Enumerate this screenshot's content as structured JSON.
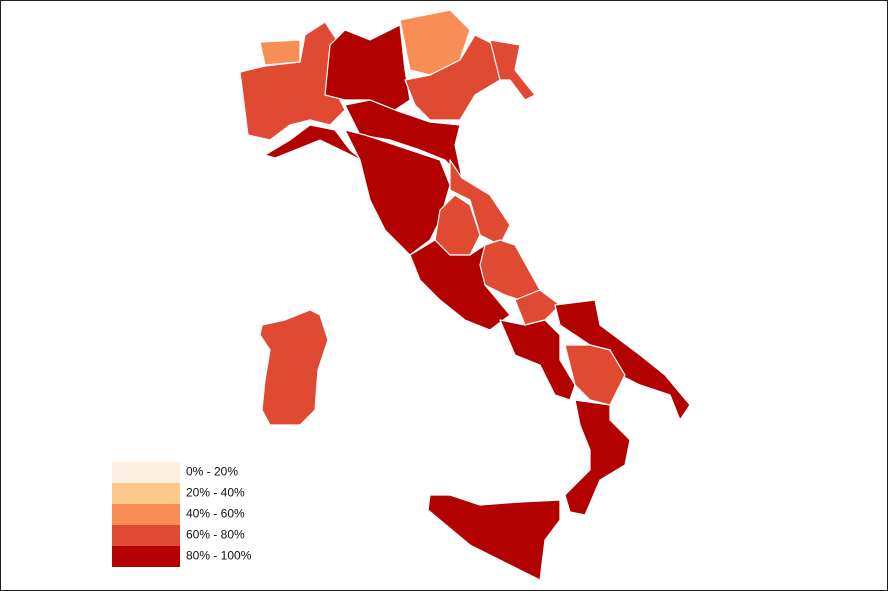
{
  "legend": {
    "items": [
      {
        "label": "0% - 20%",
        "color": "#fdeee2"
      },
      {
        "label": "20% - 40%",
        "color": "#fdc98a"
      },
      {
        "label": "40% - 60%",
        "color": "#f98d56"
      },
      {
        "label": "60% - 80%",
        "color": "#e04a33"
      },
      {
        "label": "80% - 100%",
        "color": "#b30000"
      }
    ]
  }
}
